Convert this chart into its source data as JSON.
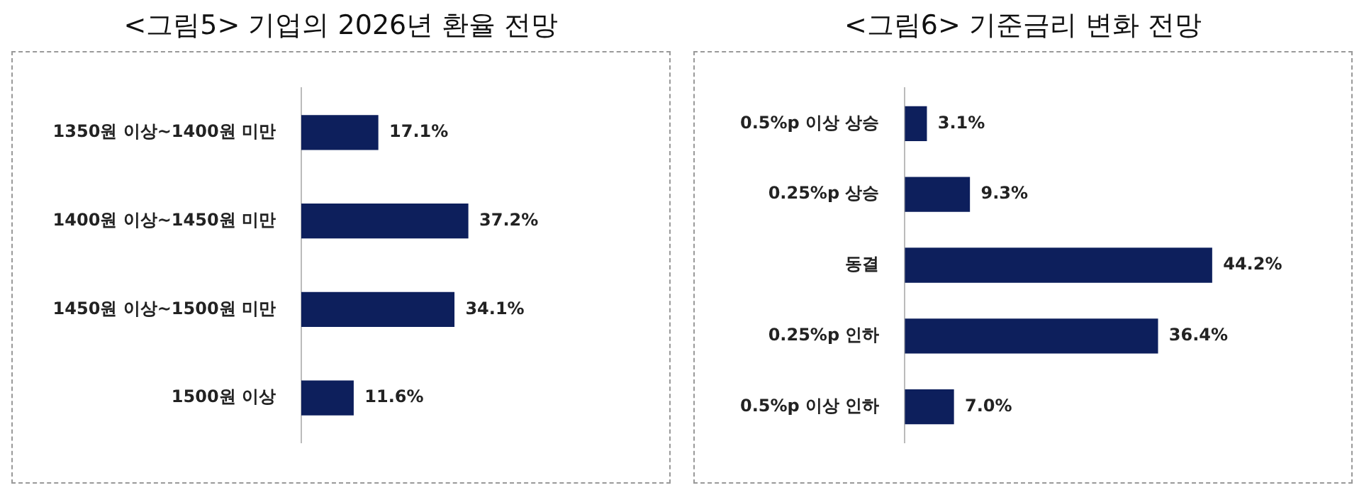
{
  "chart_data": [
    {
      "type": "bar",
      "orientation": "horizontal",
      "title": "<그림5> 기업의 2026년 환율 전망",
      "categories": [
        "1350원 이상~1400원 미만",
        "1400원 이상~1450원 미만",
        "1450원 이상~1500원 미만",
        "1500원 이상"
      ],
      "values": [
        17.1,
        37.2,
        34.1,
        11.6
      ],
      "color": "#0d1f5c",
      "value_labels": [
        "17.1%",
        "37.2%",
        "34.1%",
        "11.6%"
      ]
    },
    {
      "type": "bar",
      "orientation": "horizontal",
      "title": "<그림6> 기준금리 변화 전망",
      "categories": [
        "0.5%p 이상 상승",
        "0.25%p 상승",
        "동결",
        "0.25%p 인하",
        "0.5%p 이상 인하"
      ],
      "values": [
        3.1,
        9.3,
        44.2,
        36.4,
        7.0
      ],
      "color": "#0d1f5c",
      "value_labels": [
        "3.1%",
        "9.3%",
        "44.2%",
        "36.4%",
        "7.0%"
      ]
    }
  ]
}
